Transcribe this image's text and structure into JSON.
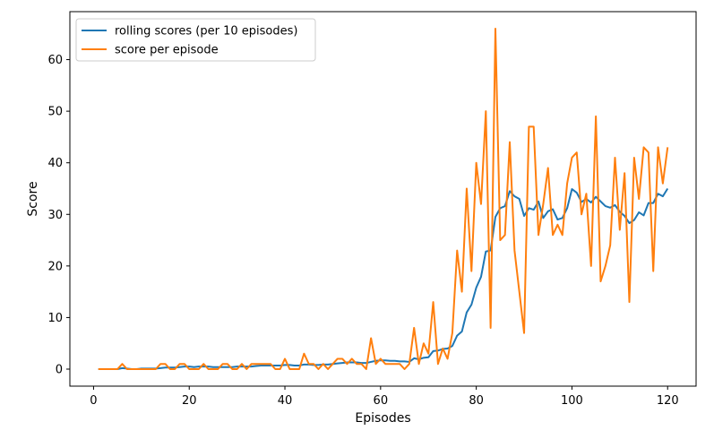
{
  "chart_data": {
    "type": "line",
    "title": "",
    "xlabel": "Episodes",
    "ylabel": "Score",
    "xlim": [
      -4.95,
      125.95
    ],
    "ylim": [
      -3.3,
      69.3
    ],
    "xticks": [
      0,
      20,
      40,
      60,
      80,
      100,
      120
    ],
    "yticks": [
      0,
      10,
      20,
      30,
      40,
      50,
      60
    ],
    "grid": false,
    "legend_position": "top-left",
    "x": [
      1,
      2,
      3,
      4,
      5,
      6,
      7,
      8,
      9,
      10,
      11,
      12,
      13,
      14,
      15,
      16,
      17,
      18,
      19,
      20,
      21,
      22,
      23,
      24,
      25,
      26,
      27,
      28,
      29,
      30,
      31,
      32,
      33,
      34,
      35,
      36,
      37,
      38,
      39,
      40,
      41,
      42,
      43,
      44,
      45,
      46,
      47,
      48,
      49,
      50,
      51,
      52,
      53,
      54,
      55,
      56,
      57,
      58,
      59,
      60,
      61,
      62,
      63,
      64,
      65,
      66,
      67,
      68,
      69,
      70,
      71,
      72,
      73,
      74,
      75,
      76,
      77,
      78,
      79,
      80,
      81,
      82,
      83,
      84,
      85,
      86,
      87,
      88,
      89,
      90,
      91,
      92,
      93,
      94,
      95,
      96,
      97,
      98,
      99,
      100,
      101,
      102,
      103,
      104,
      105,
      106,
      107,
      108,
      109,
      110,
      111,
      112,
      113,
      114,
      115,
      116,
      117,
      118,
      119,
      120
    ],
    "series": [
      {
        "name": "rolling scores (per 10 episodes)",
        "color": "#1f77b4",
        "values": [
          0,
          0,
          0,
          0,
          0,
          0.2,
          0.1,
          0,
          0,
          0.1,
          0.1,
          0.1,
          0.1,
          0.2,
          0.3,
          0.3,
          0.3,
          0.4,
          0.5,
          0.5,
          0.4,
          0.5,
          0.5,
          0.5,
          0.4,
          0.4,
          0.4,
          0.4,
          0.4,
          0.5,
          0.5,
          0.5,
          0.5,
          0.6,
          0.7,
          0.7,
          0.7,
          0.7,
          0.7,
          0.8,
          0.8,
          0.7,
          0.7,
          0.9,
          0.9,
          0.8,
          0.8,
          0.9,
          0.9,
          1.0,
          1.1,
          1.2,
          1.3,
          1.3,
          1.3,
          1.2,
          1.2,
          1.4,
          1.6,
          1.7,
          1.7,
          1.6,
          1.6,
          1.5,
          1.5,
          1.4,
          2.1,
          1.9,
          2.2,
          2.3,
          3.5,
          3.6,
          3.9,
          4.0,
          4.5,
          6.5,
          7.3,
          11.0,
          12.5,
          15.8,
          17.9,
          22.8,
          23.0,
          29.5,
          31.2,
          31.6,
          34.5,
          33.5,
          33.0,
          29.7,
          31.2,
          30.9,
          32.5,
          29.3,
          30.6,
          31.0,
          29.0,
          29.3,
          31.2,
          34.9,
          34.2,
          32.4,
          33.0,
          32.3,
          33.4,
          32.5,
          31.6,
          31.3,
          31.8,
          30.5,
          29.7,
          28.3,
          28.9,
          30.4,
          29.8,
          32.2,
          32.2,
          34.0,
          33.5,
          35.0
        ]
      },
      {
        "name": "score per episode",
        "color": "#ff7f0e",
        "values": [
          0,
          0,
          0,
          0,
          0,
          1,
          0,
          0,
          0,
          0,
          0,
          0,
          0,
          1,
          1,
          0,
          0,
          1,
          1,
          0,
          0,
          0,
          1,
          0,
          0,
          0,
          1,
          1,
          0,
          0,
          1,
          0,
          1,
          1,
          1,
          1,
          1,
          0,
          0,
          2,
          0,
          0,
          0,
          3,
          1,
          1,
          0,
          1,
          0,
          1,
          2,
          2,
          1,
          2,
          1,
          1,
          0,
          6,
          1,
          2,
          1,
          1,
          1,
          1,
          0,
          1,
          8,
          1,
          5,
          3,
          13,
          1,
          4,
          2,
          7,
          23,
          15,
          35,
          19,
          40,
          32,
          50,
          8,
          66,
          25,
          26,
          44,
          23,
          15,
          7,
          47,
          47,
          26,
          32,
          39,
          26,
          28,
          26,
          36,
          41,
          42,
          30,
          34,
          20,
          49,
          17,
          20,
          24,
          41,
          27,
          38,
          13,
          41,
          33,
          43,
          42,
          19,
          43,
          36,
          43
        ]
      }
    ]
  }
}
